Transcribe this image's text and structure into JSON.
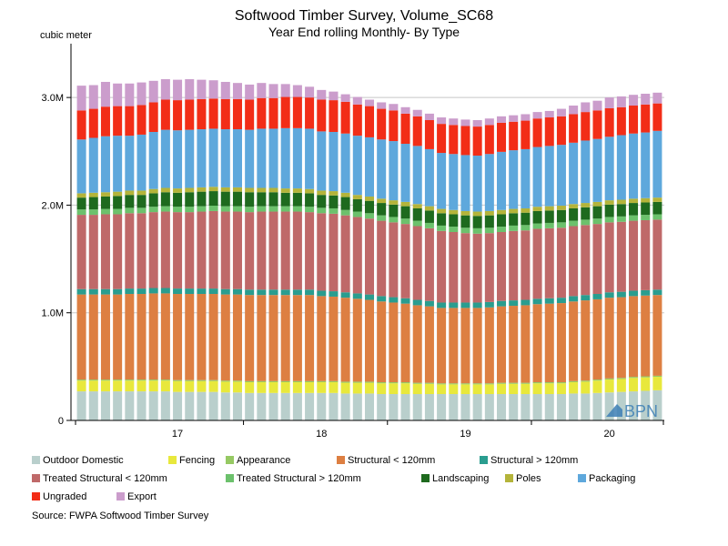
{
  "chart_data": {
    "type": "bar",
    "stacked": true,
    "title": "Softwood Timber Survey, Volume_SC68",
    "subtitle": "Year End rolling Monthly- By Type",
    "ylabel": "cubic meter",
    "ylim": [
      0,
      3500000
    ],
    "yticks": [
      0,
      1000000,
      2000000,
      3000000
    ],
    "ytick_labels": [
      "0",
      "1.0M",
      "2.0M",
      "3.0M"
    ],
    "xtick_labels": [
      "17",
      "18",
      "19",
      "20"
    ],
    "xtick_label_after_bar": [
      8,
      20,
      32,
      44
    ],
    "grid": true,
    "legend_position": "bottom",
    "source": "Source: FWPA Softwood Timber Survey",
    "watermark": "BPN",
    "series": [
      {
        "name": "Outdoor Domestic",
        "color": "#b9cfcc",
        "values": [
          270000,
          270000,
          270000,
          270000,
          270000,
          270000,
          270000,
          270000,
          265000,
          265000,
          265000,
          265000,
          260000,
          260000,
          255000,
          255000,
          255000,
          255000,
          255000,
          255000,
          255000,
          255000,
          250000,
          250000,
          250000,
          245000,
          245000,
          245000,
          245000,
          245000,
          245000,
          245000,
          245000,
          245000,
          245000,
          245000,
          245000,
          245000,
          245000,
          245000,
          245000,
          250000,
          250000,
          255000,
          260000,
          265000,
          270000,
          275000,
          280000
        ]
      },
      {
        "name": "Fencing",
        "color": "#e8e83c",
        "values": [
          100000,
          100000,
          100000,
          100000,
          100000,
          100000,
          100000,
          100000,
          100000,
          100000,
          100000,
          100000,
          100000,
          100000,
          100000,
          100000,
          100000,
          100000,
          100000,
          100000,
          100000,
          100000,
          100000,
          100000,
          100000,
          100000,
          100000,
          100000,
          95000,
          95000,
          90000,
          90000,
          90000,
          90000,
          90000,
          95000,
          95000,
          95000,
          100000,
          100000,
          100000,
          105000,
          110000,
          115000,
          120000,
          120000,
          125000,
          125000,
          125000
        ]
      },
      {
        "name": "Appearance",
        "color": "#96c963",
        "values": [
          10000,
          10000,
          10000,
          10000,
          10000,
          10000,
          10000,
          10000,
          10000,
          10000,
          10000,
          10000,
          10000,
          10000,
          10000,
          10000,
          10000,
          10000,
          10000,
          10000,
          10000,
          10000,
          10000,
          10000,
          10000,
          10000,
          10000,
          10000,
          10000,
          10000,
          10000,
          10000,
          10000,
          10000,
          10000,
          10000,
          10000,
          10000,
          10000,
          10000,
          10000,
          10000,
          10000,
          10000,
          10000,
          10000,
          10000,
          10000,
          10000
        ]
      },
      {
        "name": "Structural < 120mm",
        "color": "#dd7f42",
        "values": [
          790000,
          790000,
          790000,
          790000,
          795000,
          795000,
          800000,
          800000,
          800000,
          800000,
          800000,
          800000,
          800000,
          800000,
          800000,
          800000,
          800000,
          800000,
          800000,
          800000,
          790000,
          785000,
          780000,
          770000,
          760000,
          750000,
          740000,
          730000,
          720000,
          710000,
          700000,
          700000,
          700000,
          700000,
          705000,
          710000,
          715000,
          720000,
          725000,
          730000,
          735000,
          740000,
          745000,
          745000,
          750000,
          750000,
          750000,
          750000,
          750000
        ]
      },
      {
        "name": "Structural > 120mm",
        "color": "#2a9d8f",
        "values": [
          50000,
          50000,
          50000,
          50000,
          50000,
          50000,
          50000,
          50000,
          50000,
          50000,
          50000,
          50000,
          50000,
          50000,
          50000,
          50000,
          50000,
          50000,
          50000,
          50000,
          50000,
          50000,
          50000,
          50000,
          50000,
          50000,
          50000,
          50000,
          50000,
          50000,
          50000,
          50000,
          50000,
          50000,
          50000,
          50000,
          50000,
          50000,
          50000,
          50000,
          50000,
          50000,
          50000,
          50000,
          50000,
          50000,
          50000,
          50000,
          50000
        ]
      },
      {
        "name": "Treated Structural < 120mm",
        "color": "#bf6969",
        "values": [
          690000,
          690000,
          695000,
          695000,
          700000,
          700000,
          705000,
          710000,
          710000,
          710000,
          715000,
          720000,
          720000,
          720000,
          720000,
          725000,
          725000,
          725000,
          725000,
          720000,
          720000,
          720000,
          715000,
          710000,
          705000,
          700000,
          695000,
          690000,
          685000,
          675000,
          665000,
          655000,
          645000,
          640000,
          640000,
          640000,
          645000,
          645000,
          650000,
          650000,
          650000,
          650000,
          650000,
          650000,
          650000,
          650000,
          650000,
          650000,
          650000
        ]
      },
      {
        "name": "Treated Structural > 120mm",
        "color": "#6cc16c",
        "values": [
          50000,
          50000,
          50000,
          50000,
          50000,
          50000,
          50000,
          50000,
          50000,
          50000,
          50000,
          50000,
          50000,
          50000,
          50000,
          50000,
          50000,
          50000,
          50000,
          50000,
          50000,
          50000,
          50000,
          50000,
          50000,
          50000,
          50000,
          50000,
          50000,
          50000,
          50000,
          50000,
          50000,
          50000,
          50000,
          50000,
          50000,
          50000,
          50000,
          50000,
          50000,
          50000,
          50000,
          50000,
          50000,
          50000,
          50000,
          50000,
          50000
        ]
      },
      {
        "name": "Landscaping",
        "color": "#1e6a1e",
        "values": [
          110000,
          115000,
          115000,
          120000,
          120000,
          120000,
          125000,
          130000,
          130000,
          135000,
          135000,
          135000,
          135000,
          135000,
          135000,
          130000,
          130000,
          125000,
          125000,
          125000,
          120000,
          120000,
          120000,
          115000,
          115000,
          115000,
          115000,
          115000,
          115000,
          115000,
          115000,
          115000,
          115000,
          115000,
          115000,
          115000,
          115000,
          115000,
          115000,
          115000,
          115000,
          115000,
          115000,
          115000,
          115000,
          115000,
          115000,
          115000,
          115000
        ]
      },
      {
        "name": "Poles",
        "color": "#b4b43a",
        "values": [
          40000,
          40000,
          40000,
          40000,
          40000,
          40000,
          40000,
          40000,
          40000,
          40000,
          40000,
          40000,
          40000,
          40000,
          40000,
          40000,
          40000,
          40000,
          40000,
          40000,
          40000,
          40000,
          40000,
          40000,
          40000,
          40000,
          40000,
          40000,
          40000,
          40000,
          40000,
          40000,
          40000,
          40000,
          40000,
          40000,
          40000,
          40000,
          40000,
          40000,
          40000,
          40000,
          40000,
          40000,
          40000,
          40000,
          40000,
          40000,
          40000
        ]
      },
      {
        "name": "Packaging",
        "color": "#5ea8dc",
        "values": [
          500000,
          510000,
          520000,
          520000,
          510000,
          520000,
          530000,
          540000,
          540000,
          540000,
          540000,
          540000,
          540000,
          540000,
          540000,
          550000,
          550000,
          560000,
          560000,
          560000,
          550000,
          550000,
          550000,
          550000,
          550000,
          550000,
          550000,
          540000,
          540000,
          530000,
          520000,
          520000,
          520000,
          520000,
          530000,
          540000,
          545000,
          550000,
          555000,
          560000,
          565000,
          570000,
          580000,
          585000,
          590000,
          600000,
          605000,
          610000,
          620000
        ]
      },
      {
        "name": "Ungraded",
        "color": "#f22d17",
        "values": [
          270000,
          270000,
          275000,
          275000,
          275000,
          275000,
          275000,
          280000,
          280000,
          280000,
          280000,
          280000,
          280000,
          280000,
          280000,
          285000,
          285000,
          290000,
          290000,
          290000,
          295000,
          295000,
          295000,
          290000,
          290000,
          285000,
          285000,
          280000,
          275000,
          270000,
          270000,
          270000,
          270000,
          270000,
          270000,
          270000,
          265000,
          265000,
          265000,
          265000,
          265000,
          265000,
          265000,
          265000,
          265000,
          260000,
          260000,
          260000,
          255000
        ]
      },
      {
        "name": "Export",
        "color": "#cb9dcc",
        "values": [
          230000,
          220000,
          230000,
          210000,
          210000,
          210000,
          200000,
          190000,
          190000,
          190000,
          180000,
          170000,
          160000,
          150000,
          140000,
          140000,
          130000,
          120000,
          110000,
          100000,
          90000,
          80000,
          70000,
          70000,
          60000,
          60000,
          60000,
          60000,
          60000,
          60000,
          60000,
          60000,
          60000,
          60000,
          60000,
          60000,
          60000,
          60000,
          60000,
          60000,
          70000,
          80000,
          90000,
          90000,
          100000,
          100000,
          100000,
          100000,
          100000
        ]
      }
    ],
    "legend": [
      {
        "name": "Outdoor Domestic",
        "color": "#b9cfcc"
      },
      {
        "name": "Fencing",
        "color": "#e8e83c"
      },
      {
        "name": "Appearance",
        "color": "#96c963"
      },
      {
        "name": "Structural < 120mm",
        "color": "#dd7f42"
      },
      {
        "name": "Structural > 120mm",
        "color": "#2a9d8f"
      },
      {
        "name": "Treated Structural < 120mm",
        "color": "#bf6969"
      },
      {
        "name": "Treated Structural > 120mm",
        "color": "#6cc16c"
      },
      {
        "name": "Landscaping",
        "color": "#1e6a1e"
      },
      {
        "name": "Poles",
        "color": "#b4b43a"
      },
      {
        "name": "Packaging",
        "color": "#5ea8dc"
      },
      {
        "name": "Ungraded",
        "color": "#f22d17"
      },
      {
        "name": "Export",
        "color": "#cb9dcc"
      }
    ]
  }
}
